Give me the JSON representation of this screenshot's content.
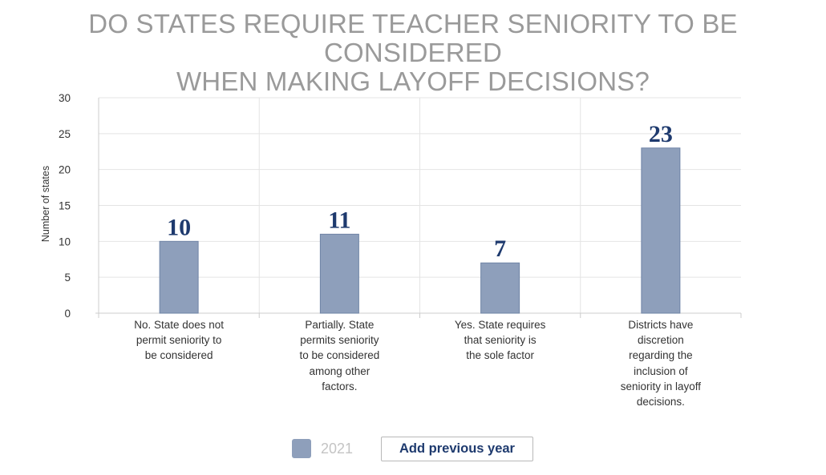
{
  "title_line1": "DO STATES REQUIRE TEACHER SENIORITY TO BE CONSIDERED",
  "title_line2": "WHEN MAKING LAYOFF DECISIONS?",
  "colors": {
    "bar": "#8e9fbb",
    "bar_stroke": "#6f84a6",
    "data_label": "#1e3a6e",
    "grid": "#e4e4e4",
    "axis": "#cccccc",
    "title": "#9a9a9a"
  },
  "legend": {
    "label": "2021"
  },
  "button": {
    "label": "Add previous year"
  },
  "chart_data": {
    "type": "bar",
    "categories": [
      "No. State does not permit seniority to be considered",
      "Partially. State permits seniority to be considered among other factors.",
      "Yes. State requires that seniority is the sole factor",
      "Districts have discretion regarding the inclusion of seniority in layoff decisions."
    ],
    "category_lines": [
      [
        "No. State does not",
        "permit seniority to",
        "be considered"
      ],
      [
        "Partially. State",
        "permits seniority",
        "to be considered",
        "among other",
        "factors."
      ],
      [
        "Yes. State requires",
        "that seniority is",
        "the sole factor"
      ],
      [
        "Districts have",
        "discretion",
        "regarding the",
        "inclusion of",
        "seniority in layoff",
        "decisions."
      ]
    ],
    "series": [
      {
        "name": "2021",
        "values": [
          10,
          11,
          7,
          23
        ]
      }
    ],
    "ylabel": "Number of states",
    "ylim": [
      0,
      30
    ],
    "yticks": [
      0,
      5,
      10,
      15,
      20,
      25,
      30
    ],
    "grid": true,
    "legend_position": "bottom"
  }
}
